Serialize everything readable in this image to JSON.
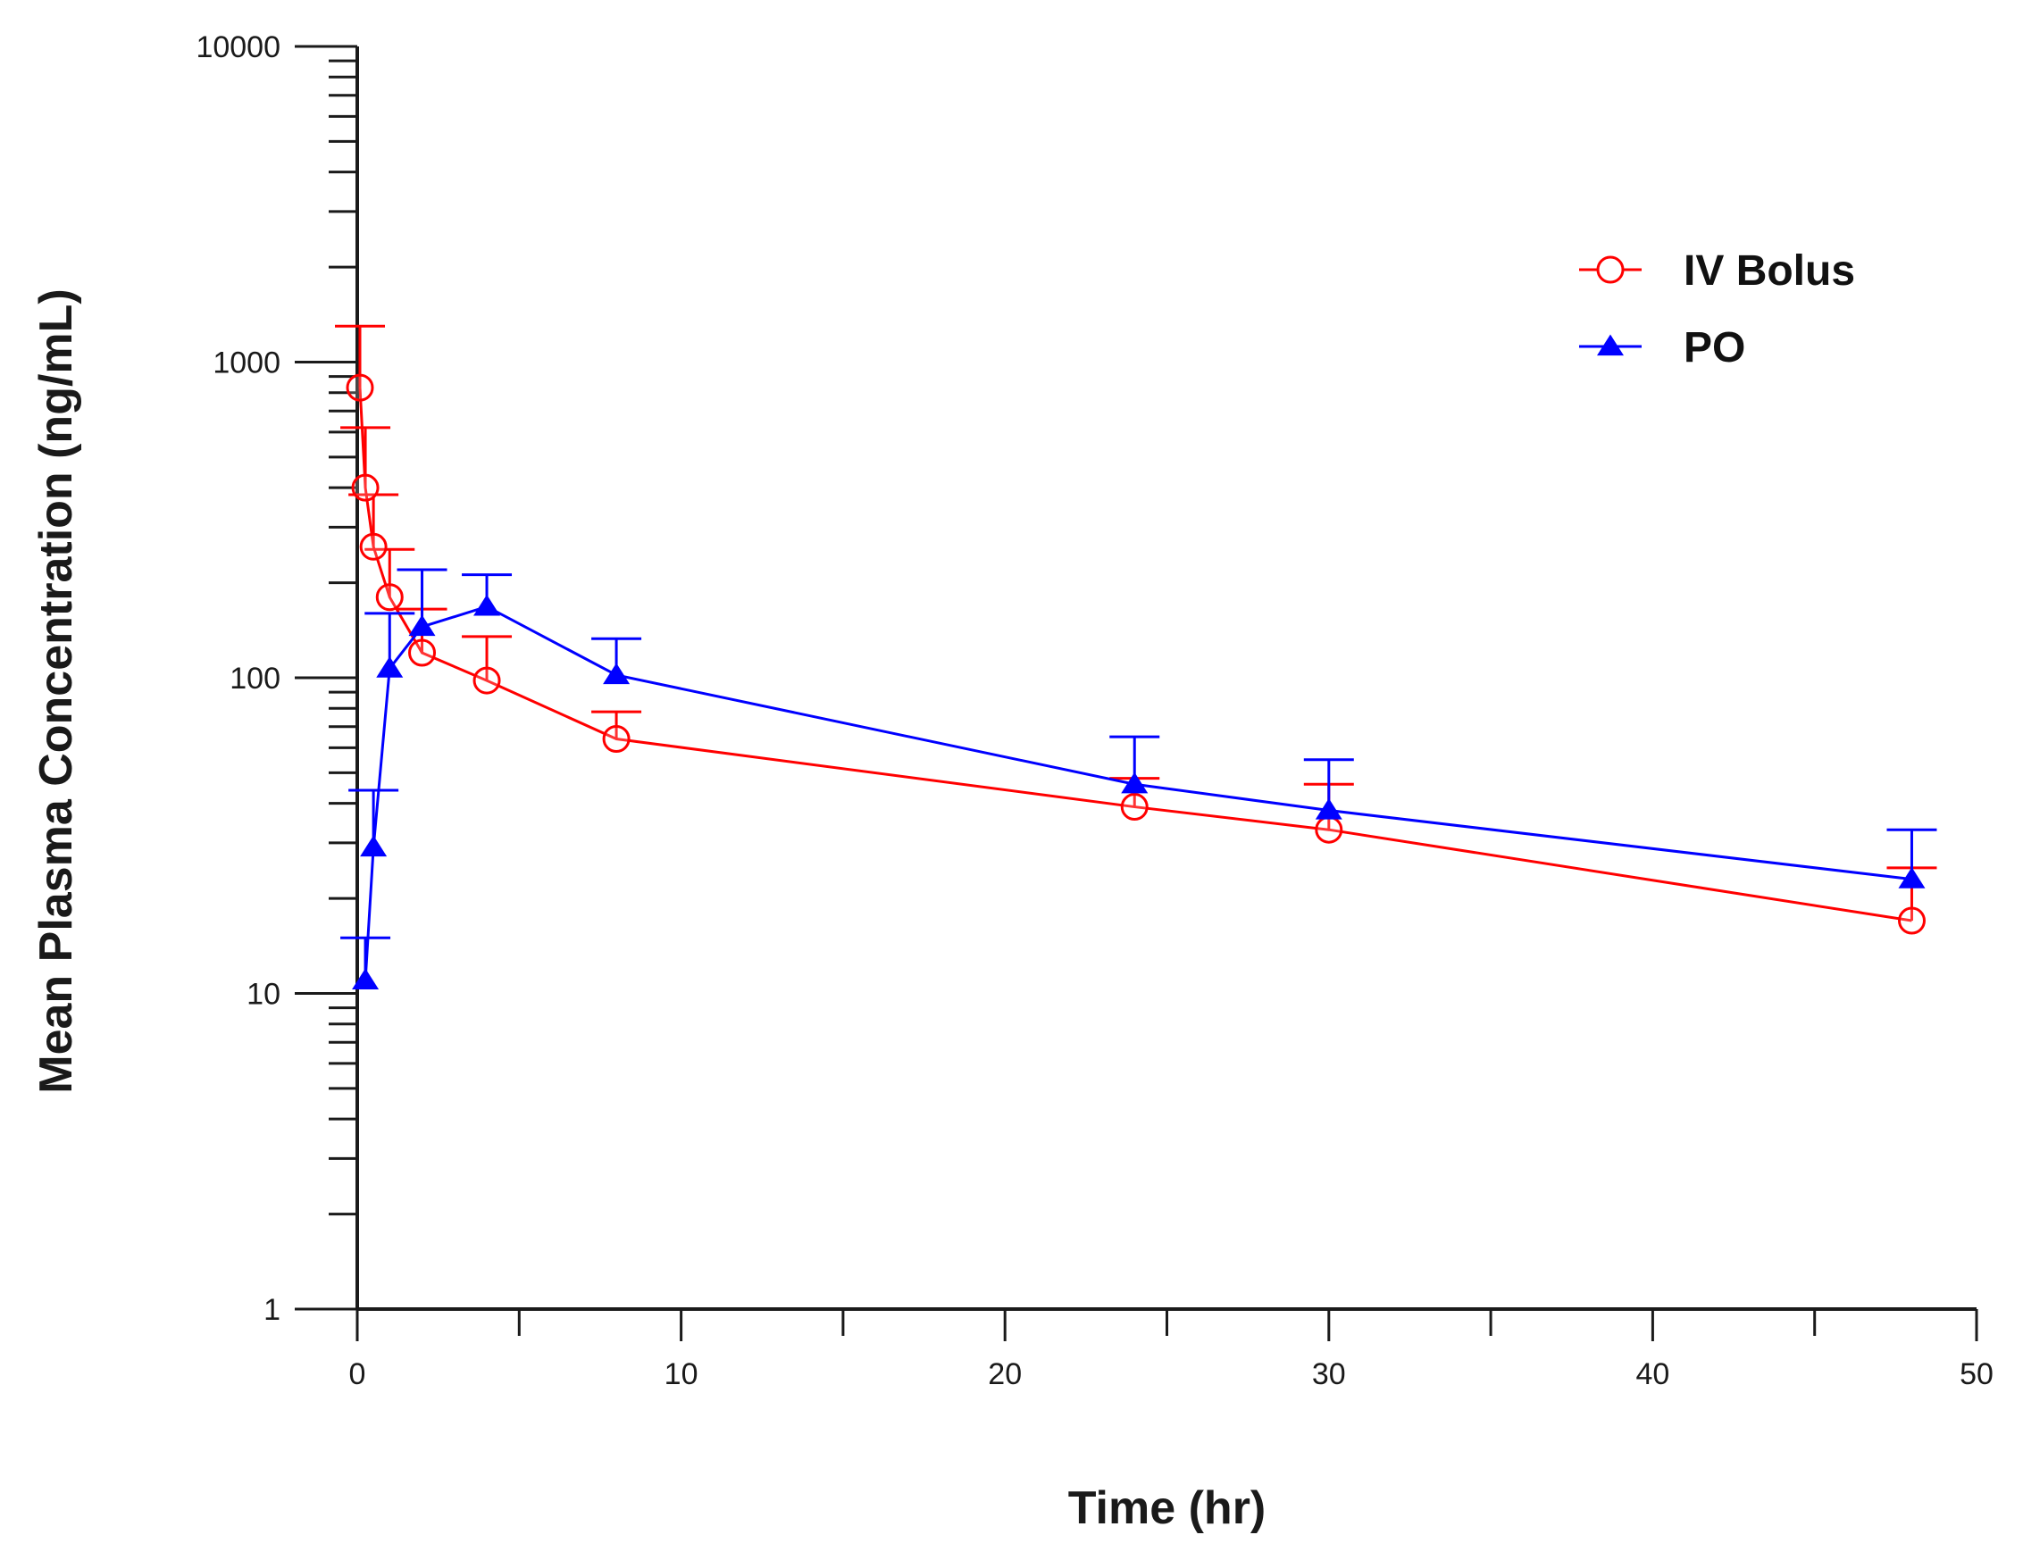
{
  "chart_data": {
    "type": "line",
    "title": "",
    "xlabel": "Time (hr)",
    "ylabel": "Mean Plasma Concentration (ng/mL)",
    "xlim": [
      0,
      50
    ],
    "ylim": [
      1,
      10000
    ],
    "yscale": "log",
    "grid": false,
    "legend_position": "top-right",
    "x_ticks": [
      "0",
      "10",
      "20",
      "30",
      "40",
      "50"
    ],
    "y_ticks": [
      "1",
      "10",
      "100",
      "1000",
      "10000"
    ],
    "series": [
      {
        "name": "IV Bolus",
        "color": "#ff0000",
        "marker": "open-circle",
        "x": [
          0.083,
          0.25,
          0.5,
          1,
          2,
          4,
          8,
          24,
          30,
          48
        ],
        "y": [
          830,
          400,
          260,
          180,
          120,
          98,
          64,
          39,
          33,
          17
        ],
        "error_upper": [
          1300,
          620,
          380,
          255,
          165,
          135,
          78,
          48,
          46,
          25
        ]
      },
      {
        "name": "PO",
        "color": "#0000ff",
        "marker": "filled-triangle",
        "x": [
          0.25,
          0.5,
          1,
          2,
          4,
          8,
          24,
          30,
          48
        ],
        "y": [
          11,
          29,
          107,
          145,
          168,
          102,
          46,
          38,
          23
        ],
        "error_upper": [
          15,
          44,
          160,
          220,
          212,
          133,
          65,
          55,
          33
        ]
      }
    ]
  }
}
